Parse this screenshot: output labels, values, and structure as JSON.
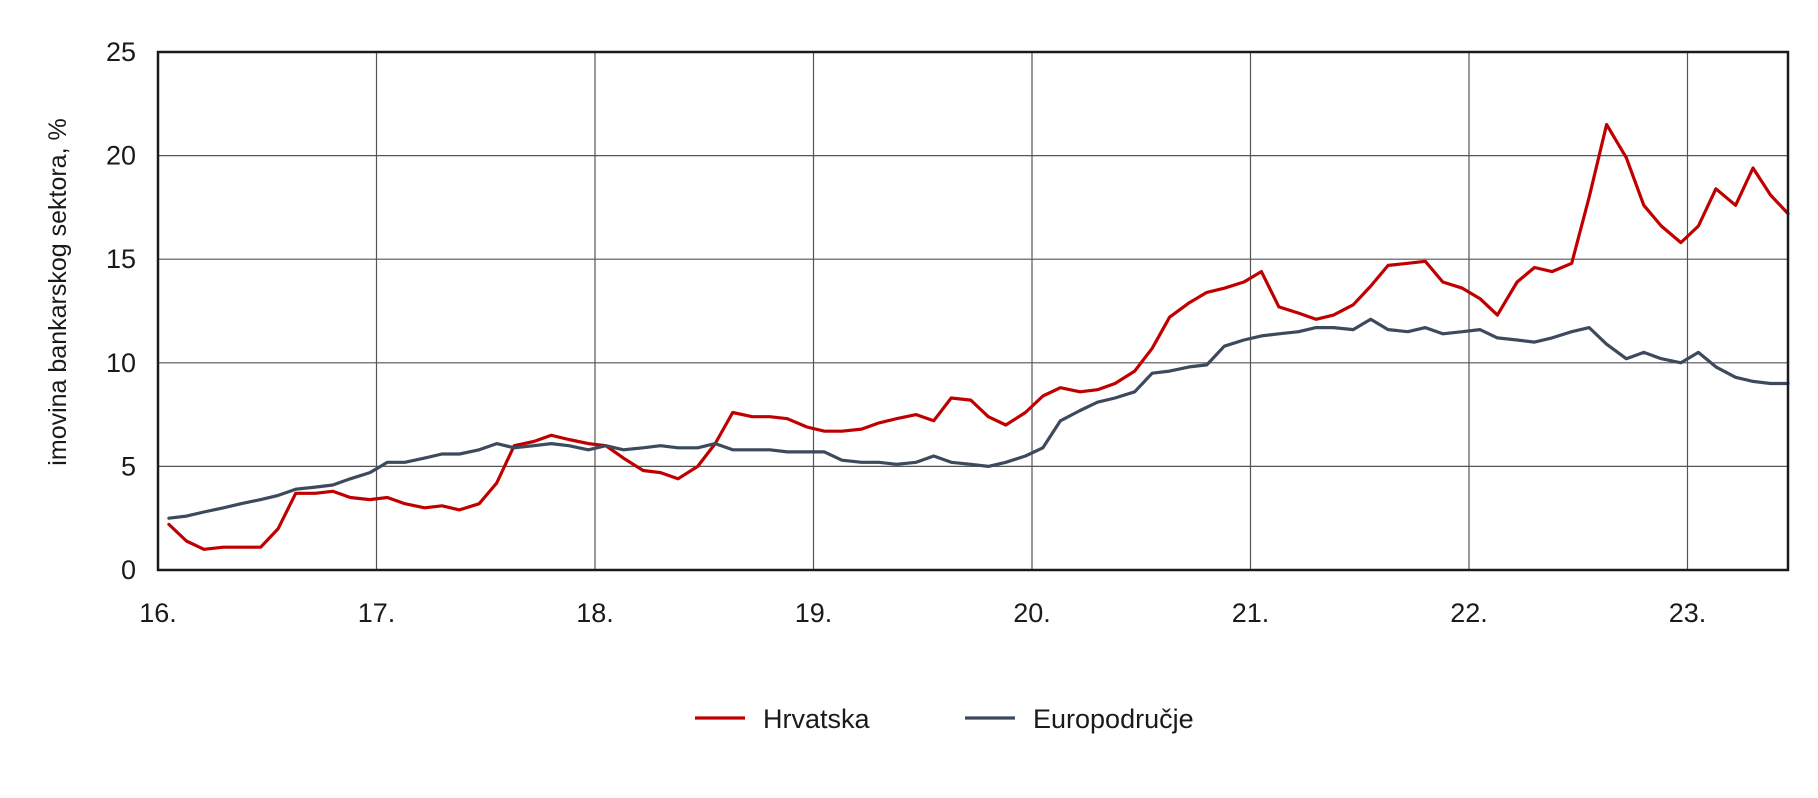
{
  "chart_data": {
    "type": "line",
    "ylabel": "imovina bankarskog sektora, %",
    "ylim": [
      0,
      25
    ],
    "yticks": [
      "0",
      "5",
      "10",
      "15",
      "20",
      "25"
    ],
    "xlim": [
      16.0,
      23.46
    ],
    "xticks": [
      "16.",
      "17.",
      "18.",
      "19.",
      "20.",
      "21.",
      "22.",
      "23."
    ],
    "grid": true,
    "legend_position": "bottom-center",
    "series": [
      {
        "name": "Hrvatska",
        "color": "#c00000",
        "x": [
          16.05,
          16.13,
          16.21,
          16.3,
          16.38,
          16.47,
          16.55,
          16.63,
          16.72,
          16.8,
          16.88,
          16.97,
          17.05,
          17.13,
          17.22,
          17.3,
          17.38,
          17.47,
          17.55,
          17.63,
          17.72,
          17.8,
          17.88,
          17.97,
          18.05,
          18.13,
          18.22,
          18.3,
          18.38,
          18.47,
          18.55,
          18.63,
          18.72,
          18.8,
          18.88,
          18.97,
          19.05,
          19.13,
          19.22,
          19.3,
          19.38,
          19.47,
          19.55,
          19.63,
          19.72,
          19.8,
          19.88,
          19.97,
          20.05,
          20.13,
          20.22,
          20.3,
          20.38,
          20.47,
          20.55,
          20.63,
          20.72,
          20.8,
          20.88,
          20.97,
          21.05,
          21.13,
          21.22,
          21.3,
          21.38,
          21.47,
          21.55,
          21.63,
          21.72,
          21.8,
          21.88,
          21.97,
          22.05,
          22.13,
          22.22,
          22.3,
          22.38,
          22.47,
          22.55,
          22.63,
          22.72,
          22.8,
          22.88,
          22.97,
          23.05,
          23.13,
          23.22,
          23.3,
          23.38,
          23.46
        ],
        "values": [
          2.2,
          1.4,
          1.0,
          1.1,
          1.1,
          1.1,
          2.0,
          3.7,
          3.7,
          3.8,
          3.5,
          3.4,
          3.5,
          3.2,
          3.0,
          3.1,
          2.9,
          3.2,
          4.2,
          6.0,
          6.2,
          6.5,
          6.3,
          6.1,
          6.0,
          5.4,
          4.8,
          4.7,
          4.4,
          5.0,
          6.1,
          7.6,
          7.4,
          7.4,
          7.3,
          6.9,
          6.7,
          6.7,
          6.8,
          7.1,
          7.3,
          7.5,
          7.2,
          8.3,
          8.2,
          7.4,
          7.0,
          7.6,
          8.4,
          8.8,
          8.6,
          8.7,
          9.0,
          9.6,
          10.7,
          12.2,
          12.9,
          13.4,
          13.6,
          13.9,
          14.4,
          12.7,
          12.4,
          12.1,
          12.3,
          12.8,
          13.7,
          14.7,
          14.8,
          14.9,
          13.9,
          13.6,
          13.1,
          12.3,
          13.9,
          14.6,
          14.4,
          14.8,
          18.0,
          21.5,
          19.9,
          17.6,
          16.6,
          15.8,
          16.6,
          18.4,
          17.6,
          19.4,
          18.1,
          17.2
        ]
      },
      {
        "name": "Europodručje",
        "color": "#3d4a5c",
        "x": [
          16.05,
          16.13,
          16.21,
          16.3,
          16.38,
          16.47,
          16.55,
          16.63,
          16.72,
          16.8,
          16.88,
          16.97,
          17.05,
          17.13,
          17.22,
          17.3,
          17.38,
          17.47,
          17.55,
          17.63,
          17.72,
          17.8,
          17.88,
          17.97,
          18.05,
          18.13,
          18.22,
          18.3,
          18.38,
          18.47,
          18.55,
          18.63,
          18.72,
          18.8,
          18.88,
          18.97,
          19.05,
          19.13,
          19.22,
          19.3,
          19.38,
          19.47,
          19.55,
          19.63,
          19.72,
          19.8,
          19.88,
          19.97,
          20.05,
          20.13,
          20.22,
          20.3,
          20.38,
          20.47,
          20.55,
          20.63,
          20.72,
          20.8,
          20.88,
          20.97,
          21.05,
          21.13,
          21.22,
          21.3,
          21.38,
          21.47,
          21.55,
          21.63,
          21.72,
          21.8,
          21.88,
          21.97,
          22.05,
          22.13,
          22.22,
          22.3,
          22.38,
          22.47,
          22.55,
          22.63,
          22.72,
          22.8,
          22.88,
          22.97,
          23.05,
          23.13,
          23.22,
          23.3,
          23.38,
          23.46
        ],
        "values": [
          2.5,
          2.6,
          2.8,
          3.0,
          3.2,
          3.4,
          3.6,
          3.9,
          4.0,
          4.1,
          4.4,
          4.7,
          5.2,
          5.2,
          5.4,
          5.6,
          5.6,
          5.8,
          6.1,
          5.9,
          6.0,
          6.1,
          6.0,
          5.8,
          6.0,
          5.8,
          5.9,
          6.0,
          5.9,
          5.9,
          6.1,
          5.8,
          5.8,
          5.8,
          5.7,
          5.7,
          5.7,
          5.3,
          5.2,
          5.2,
          5.1,
          5.2,
          5.5,
          5.2,
          5.1,
          5.0,
          5.2,
          5.5,
          5.9,
          7.2,
          7.7,
          8.1,
          8.3,
          8.6,
          9.5,
          9.6,
          9.8,
          9.9,
          10.8,
          11.1,
          11.3,
          11.4,
          11.5,
          11.7,
          11.7,
          11.6,
          12.1,
          11.6,
          11.5,
          11.7,
          11.4,
          11.5,
          11.6,
          11.2,
          11.1,
          11.0,
          11.2,
          11.5,
          11.7,
          10.9,
          10.2,
          10.5,
          10.2,
          10.0,
          10.5,
          9.8,
          9.3,
          9.1,
          9.0,
          9.0
        ]
      }
    ]
  }
}
